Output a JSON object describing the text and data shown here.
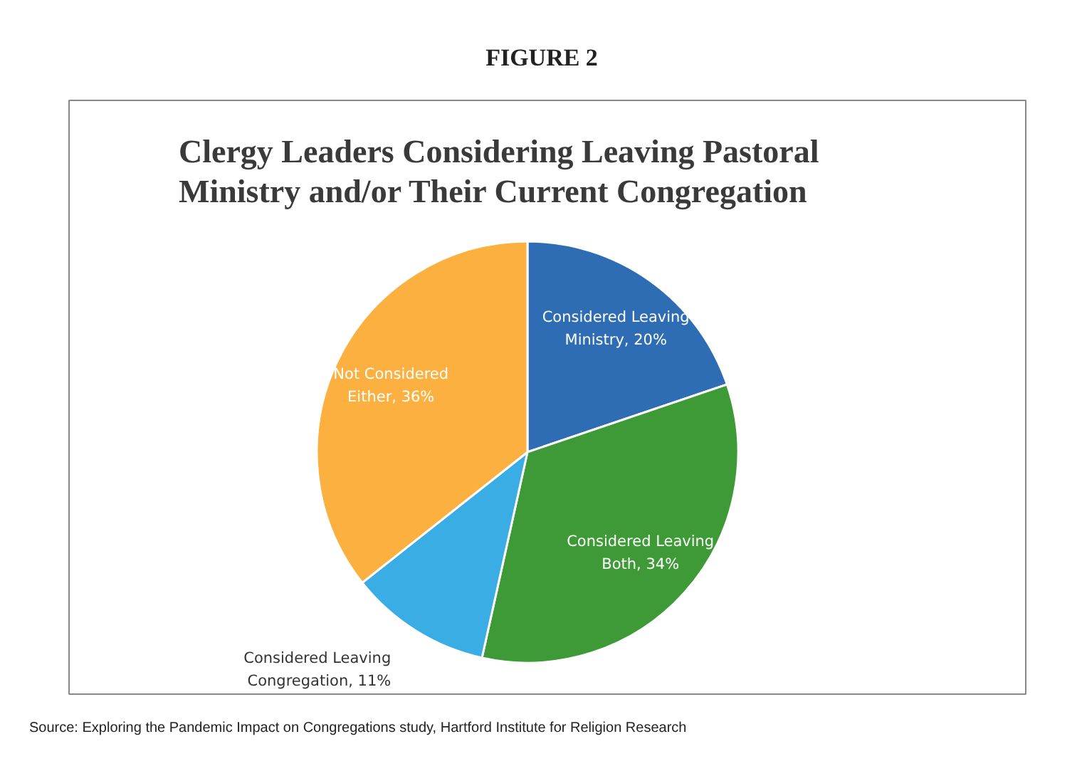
{
  "chart_data": {
    "type": "pie",
    "title": "Clergy Leaders Considering Leaving Pastoral Ministry and/or Their Current Congregation",
    "categories": [
      "Considered Leaving Ministry",
      "Considered Leaving Both",
      "Considered Leaving Congregation",
      "Not Considered Either"
    ],
    "values": [
      20,
      34,
      11,
      36
    ],
    "value_labels": [
      "20%",
      "34%",
      "11%",
      "36%"
    ],
    "colors": [
      "#2e6db4",
      "#3d9a36",
      "#3aaee4",
      "#fbb040"
    ],
    "annotations": [
      "FIGURE 2",
      "Source: Exploring the Pandemic Impact on Congregations study, Hartford Institute for Religion Research"
    ]
  }
}
